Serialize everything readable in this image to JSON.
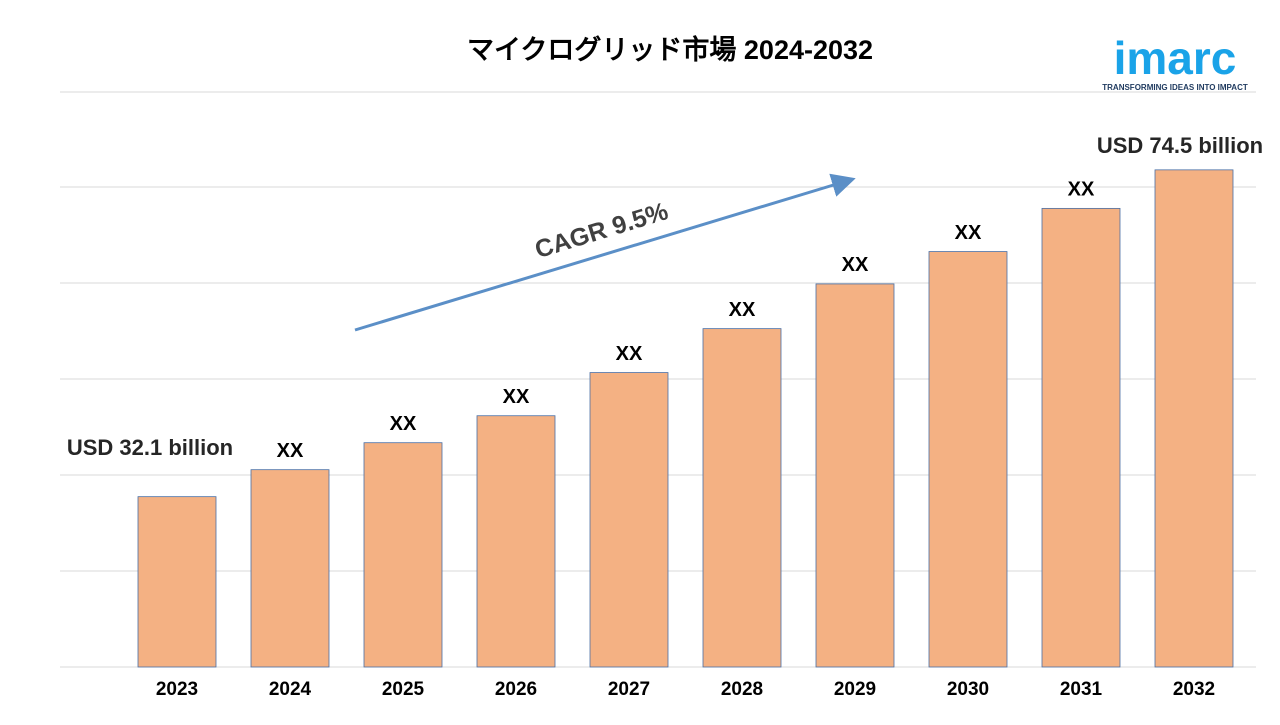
{
  "chart_data": {
    "type": "bar",
    "title": "マイクログリッド市場 2024-2032",
    "categories": [
      "2023",
      "2024",
      "2025",
      "2026",
      "2027",
      "2028",
      "2029",
      "2030",
      "2031",
      "2032"
    ],
    "values": [
      32.1,
      35.6,
      39.1,
      42.6,
      48.2,
      53.9,
      59.7,
      63.9,
      69.5,
      74.5
    ],
    "value_labels": [
      "USD 32.1 billion",
      "XX",
      "XX",
      "XX",
      "XX",
      "XX",
      "XX",
      "XX",
      "XX",
      "USD 74.5 billion"
    ],
    "color": "#f4b183",
    "ylim": [
      10,
      84.6
    ],
    "annotation": "CAGR 9.5%"
  },
  "logo": {
    "name": "imarc",
    "tagline": "TRANSFORMING IDEAS INTO IMPACT"
  }
}
